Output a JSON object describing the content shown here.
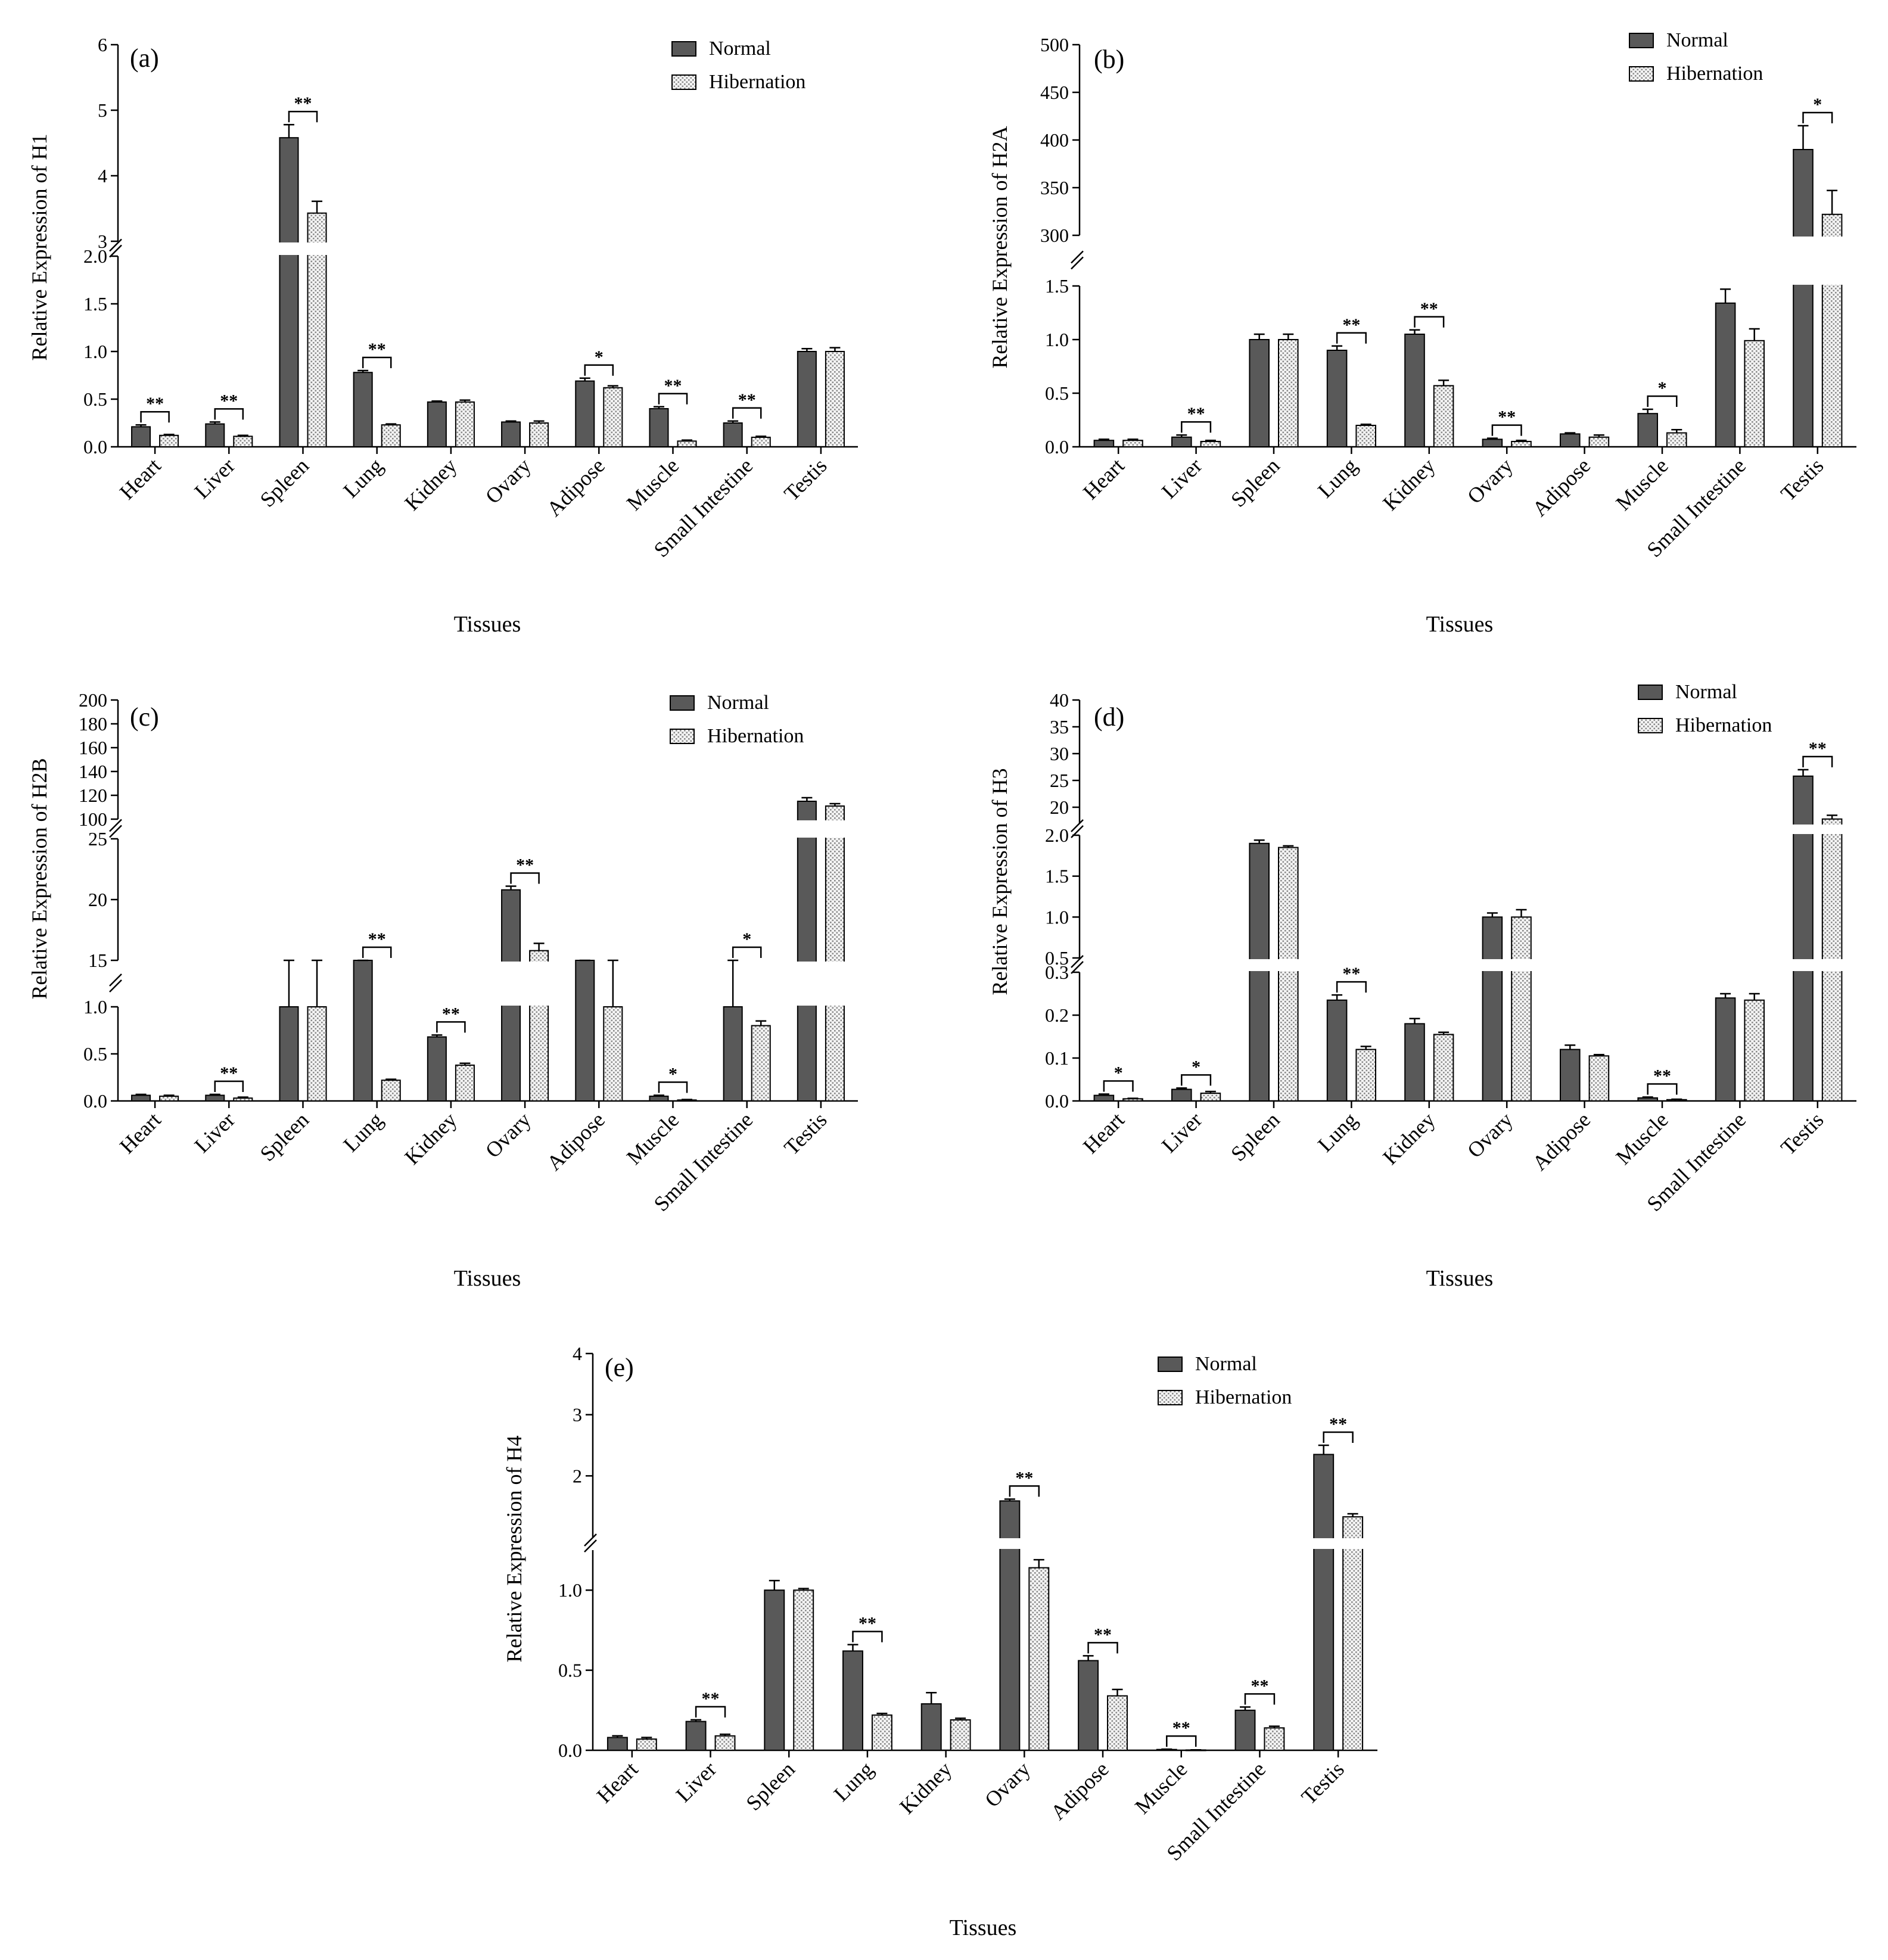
{
  "figure": {
    "xlabel": "Tissues",
    "legend": [
      "Normal",
      "Hibernation"
    ],
    "categories": [
      "Heart",
      "Liver",
      "Spleen",
      "Lung",
      "Kidney",
      "Ovary",
      "Adipose",
      "Muscle",
      "Small Intestine",
      "Testis"
    ]
  },
  "colors": {
    "normal": "#595959",
    "hibernation": "#e6e6e6",
    "axis": "#000000"
  },
  "chart_data": [
    {
      "type": "bar",
      "panel": "(a)",
      "ylabel": "Relative Expression of H1",
      "xlabel": "Tissues",
      "categories": [
        "Heart",
        "Liver",
        "Spleen",
        "Lung",
        "Kidney",
        "Ovary",
        "Adipose",
        "Muscle",
        "Small Intestine",
        "Testis"
      ],
      "series": [
        {
          "name": "Normal",
          "values": [
            0.21,
            0.24,
            4.58,
            0.78,
            0.47,
            0.26,
            0.69,
            0.4,
            0.25,
            1.0
          ],
          "errors": [
            0.02,
            0.02,
            0.2,
            0.02,
            0.01,
            0.01,
            0.03,
            0.02,
            0.02,
            0.03
          ]
        },
        {
          "name": "Hibernation",
          "values": [
            0.12,
            0.11,
            3.43,
            0.23,
            0.47,
            0.25,
            0.62,
            0.06,
            0.1,
            1.0
          ],
          "errors": [
            0.01,
            0.01,
            0.18,
            0.01,
            0.02,
            0.02,
            0.02,
            0.01,
            0.01,
            0.04
          ]
        }
      ],
      "significance": [
        "**",
        "**",
        "**",
        "**",
        "",
        "",
        "*",
        "**",
        "**",
        ""
      ],
      "segments": [
        {
          "range": [
            0,
            2.0
          ],
          "ticks": [
            "0.0",
            "0.5",
            "1.0",
            "1.5",
            "2.0"
          ]
        },
        {
          "range": [
            3,
            6
          ],
          "ticks": [
            "3",
            "4",
            "5",
            "6"
          ]
        }
      ]
    },
    {
      "type": "bar",
      "panel": "(b)",
      "ylabel": "Relative Expression of H2A",
      "xlabel": "Tissues",
      "categories": [
        "Heart",
        "Liver",
        "Spleen",
        "Lung",
        "Kidney",
        "Ovary",
        "Adipose",
        "Muscle",
        "Small Intestine",
        "Testis"
      ],
      "series": [
        {
          "name": "Normal",
          "values": [
            0.06,
            0.09,
            1.0,
            0.9,
            1.05,
            0.07,
            0.12,
            0.31,
            1.34,
            390
          ],
          "errors": [
            0.01,
            0.02,
            0.05,
            0.04,
            0.04,
            0.01,
            0.01,
            0.04,
            0.13,
            25
          ]
        },
        {
          "name": "Hibernation",
          "values": [
            0.06,
            0.05,
            1.0,
            0.2,
            0.57,
            0.05,
            0.09,
            0.13,
            0.99,
            322
          ],
          "errors": [
            0.01,
            0.01,
            0.05,
            0.01,
            0.05,
            0.01,
            0.02,
            0.03,
            0.11,
            25
          ]
        }
      ],
      "significance": [
        "",
        "**",
        "",
        "**",
        "**",
        "**",
        "",
        "*",
        "",
        "*"
      ],
      "segments": [
        {
          "range": [
            0,
            1.5
          ],
          "ticks": [
            "0.0",
            "0.5",
            "1.0",
            "1.5"
          ]
        },
        {
          "range": [
            300,
            500
          ],
          "ticks": [
            "300",
            "350",
            "400",
            "450",
            "500"
          ]
        }
      ]
    },
    {
      "type": "bar",
      "panel": "(c)",
      "ylabel": "Relative Expression of H2B",
      "xlabel": "Tissues",
      "categories": [
        "Heart",
        "Liver",
        "Spleen",
        "Lung",
        "Kidney",
        "Ovary",
        "Adipose",
        "Muscle",
        "Small Intestine",
        "Testis"
      ],
      "series": [
        {
          "name": "Normal",
          "values": [
            0.06,
            0.06,
            1.0,
            1.15,
            0.68,
            20.8,
            1.25,
            0.05,
            1.0,
            115
          ],
          "errors": [
            0.01,
            0.01,
            0.04,
            0.07,
            0.02,
            0.3,
            0.04,
            0.01,
            0.03,
            3
          ]
        },
        {
          "name": "Hibernation",
          "values": [
            0.05,
            0.03,
            1.0,
            0.22,
            0.38,
            15.8,
            1.0,
            0.01,
            0.8,
            111
          ],
          "errors": [
            0.01,
            0.01,
            0.07,
            0.01,
            0.02,
            0.6,
            0.09,
            0.005,
            0.05,
            2
          ]
        }
      ],
      "significance": [
        "",
        "**",
        "",
        "**",
        "**",
        "**",
        "",
        "*",
        "*",
        ""
      ],
      "segments": [
        {
          "range": [
            0,
            1.0
          ],
          "ticks": [
            "0.0",
            "0.5",
            "1.0"
          ]
        },
        {
          "range": [
            15,
            25
          ],
          "ticks": [
            "15",
            "20",
            "25"
          ]
        },
        {
          "range": [
            100,
            200
          ],
          "ticks": [
            "100",
            "120",
            "140",
            "160",
            "180",
            "200"
          ]
        }
      ]
    },
    {
      "type": "bar",
      "panel": "(d)",
      "ylabel": "Relative Expression of H3",
      "xlabel": "Tissues",
      "categories": [
        "Heart",
        "Liver",
        "Spleen",
        "Lung",
        "Kidney",
        "Ovary",
        "Adipose",
        "Muscle",
        "Small Intestine",
        "Testis"
      ],
      "series": [
        {
          "name": "Normal",
          "values": [
            0.013,
            0.027,
            1.9,
            0.235,
            0.18,
            1.0,
            0.12,
            0.007,
            0.24,
            25.8
          ],
          "errors": [
            0.003,
            0.003,
            0.04,
            0.012,
            0.012,
            0.05,
            0.01,
            0.002,
            0.01,
            1.2
          ]
        },
        {
          "name": "Hibernation",
          "values": [
            0.005,
            0.018,
            1.85,
            0.12,
            0.155,
            1.0,
            0.105,
            0.003,
            0.235,
            17.8
          ],
          "errors": [
            0.001,
            0.004,
            0.02,
            0.007,
            0.005,
            0.09,
            0.003,
            0.001,
            0.015,
            0.7
          ]
        }
      ],
      "significance": [
        "*",
        "*",
        "",
        "**",
        "",
        "",
        "",
        "**",
        "",
        "**"
      ],
      "segments": [
        {
          "range": [
            0,
            0.3
          ],
          "ticks": [
            "0.0",
            "0.1",
            "0.2",
            "0.3"
          ]
        },
        {
          "range": [
            0.5,
            2.0
          ],
          "ticks": [
            "0.5",
            "1.0",
            "1.5",
            "2.0"
          ]
        },
        {
          "range": [
            17,
            40
          ],
          "ticks": [
            "20",
            "25",
            "30",
            "35",
            "40"
          ]
        }
      ]
    },
    {
      "type": "bar",
      "panel": "(e)",
      "ylabel": "Relative Expression of H4",
      "xlabel": "Tissues",
      "categories": [
        "Heart",
        "Liver",
        "Spleen",
        "Lung",
        "Kidney",
        "Ovary",
        "Adipose",
        "Muscle",
        "Small Intestine",
        "Testis"
      ],
      "series": [
        {
          "name": "Normal",
          "values": [
            0.08,
            0.18,
            1.0,
            0.62,
            0.29,
            1.59,
            0.56,
            0.005,
            0.25,
            2.35
          ],
          "errors": [
            0.01,
            0.01,
            0.06,
            0.04,
            0.07,
            0.03,
            0.03,
            0.002,
            0.02,
            0.15
          ]
        },
        {
          "name": "Hibernation",
          "values": [
            0.07,
            0.09,
            1.0,
            0.22,
            0.19,
            1.14,
            0.34,
            0.002,
            0.14,
            1.33
          ],
          "errors": [
            0.01,
            0.01,
            0.01,
            0.01,
            0.01,
            0.05,
            0.04,
            0.001,
            0.01,
            0.05
          ]
        }
      ],
      "significance": [
        "",
        "**",
        "",
        "**",
        "",
        "**",
        "**",
        "**",
        "**",
        "**"
      ],
      "segments": [
        {
          "range": [
            0,
            1.25
          ],
          "ticks": [
            "0.0",
            "0.5",
            "1.0"
          ]
        },
        {
          "range": [
            1.0,
            4
          ],
          "ticks": [
            "2",
            "3",
            "4"
          ]
        }
      ]
    }
  ]
}
